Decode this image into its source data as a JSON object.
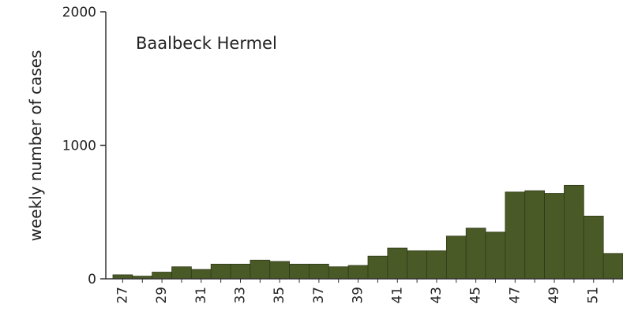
{
  "chart_data": {
    "type": "bar",
    "title": "Baalbeck Hermel",
    "xlabel": "",
    "ylabel": "weekly number of cases",
    "ylim": [
      0,
      2000
    ],
    "yticks": [
      "0",
      "1000",
      "2000"
    ],
    "x_tick_labels": [
      "27",
      "29",
      "31",
      "33",
      "35",
      "37",
      "39",
      "41",
      "43",
      "45",
      "47",
      "49",
      "51"
    ],
    "categories": [
      "27",
      "28",
      "29",
      "30",
      "31",
      "32",
      "33",
      "34",
      "35",
      "36",
      "37",
      "38",
      "39",
      "40",
      "41",
      "42",
      "43",
      "44",
      "45",
      "46",
      "47",
      "48",
      "49",
      "50",
      "51",
      "52"
    ],
    "values": [
      30,
      20,
      50,
      90,
      70,
      110,
      110,
      140,
      130,
      110,
      110,
      90,
      100,
      170,
      230,
      210,
      210,
      320,
      380,
      350,
      650,
      660,
      640,
      700,
      470,
      190
    ],
    "bar_color": "#4a5a26",
    "grid": false,
    "legend": "none"
  }
}
